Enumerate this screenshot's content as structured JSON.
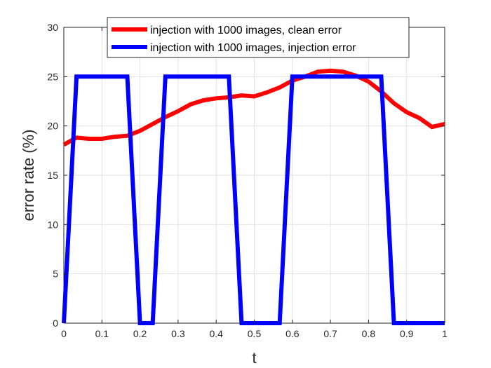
{
  "chart_data": {
    "type": "line",
    "xlabel": "t",
    "ylabel": "error rate (%)",
    "xlim": [
      0,
      1
    ],
    "ylim": [
      0,
      30
    ],
    "xticks": [
      0,
      0.1,
      0.2,
      0.3,
      0.4,
      0.5,
      0.6,
      0.7,
      0.8,
      0.9,
      1
    ],
    "xtick_labels": [
      "0",
      "0.1",
      "0.2",
      "0.3",
      "0.4",
      "0.5",
      "0.6",
      "0.7",
      "0.8",
      "0.9",
      "1"
    ],
    "yticks": [
      0,
      5,
      10,
      15,
      20,
      25,
      30
    ],
    "ytick_labels": [
      "0",
      "5",
      "10",
      "15",
      "20",
      "25",
      "30"
    ],
    "grid": true,
    "legend_position": "top",
    "series": [
      {
        "name": "injection with 1000 images, clean error",
        "color": "#ff0000",
        "x": [
          0,
          0.0333,
          0.0667,
          0.1,
          0.1333,
          0.1667,
          0.2,
          0.2333,
          0.2667,
          0.3,
          0.3333,
          0.3667,
          0.4,
          0.4333,
          0.4667,
          0.5,
          0.5333,
          0.5667,
          0.6,
          0.6333,
          0.6667,
          0.7,
          0.7333,
          0.7667,
          0.8,
          0.8333,
          0.8667,
          0.9,
          0.9333,
          0.9667,
          1
        ],
        "y": [
          18.1,
          18.8,
          18.7,
          18.7,
          18.9,
          19.0,
          19.5,
          20.2,
          20.9,
          21.5,
          22.2,
          22.6,
          22.8,
          22.9,
          23.1,
          23.0,
          23.4,
          23.9,
          24.6,
          25.0,
          25.5,
          25.6,
          25.5,
          25.1,
          24.5,
          23.5,
          22.3,
          21.4,
          20.8,
          19.9,
          20.2
        ]
      },
      {
        "name": "injection with 1000 images, injection error",
        "color": "#0000ff",
        "x": [
          0,
          0.0333,
          0.0667,
          0.1,
          0.1333,
          0.1667,
          0.2,
          0.2333,
          0.2667,
          0.3,
          0.3333,
          0.3667,
          0.4,
          0.4333,
          0.4667,
          0.5,
          0.5333,
          0.5667,
          0.6,
          0.6333,
          0.6667,
          0.7,
          0.7333,
          0.7667,
          0.8,
          0.8333,
          0.8667,
          0.9,
          0.9333,
          0.9667,
          1
        ],
        "y": [
          0,
          25,
          25,
          25,
          25,
          25,
          0,
          0,
          25,
          25,
          25,
          25,
          25,
          25,
          0,
          0,
          0,
          0,
          25,
          25,
          25,
          25,
          25,
          25,
          25,
          25,
          0,
          0,
          0,
          0,
          0
        ]
      }
    ]
  }
}
